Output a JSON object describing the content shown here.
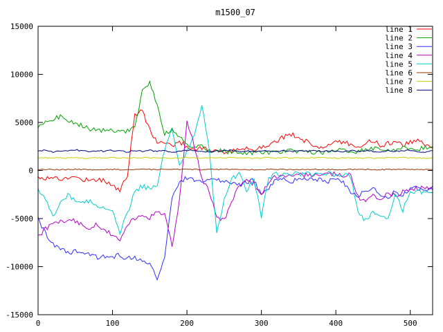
{
  "chart_data": {
    "type": "line",
    "title": "m1500_07",
    "xlabel": "",
    "ylabel": "",
    "xlim": [
      0,
      530
    ],
    "ylim": [
      -15000,
      15000
    ],
    "xticks": [
      0,
      100,
      200,
      300,
      400,
      500
    ],
    "yticks": [
      -15000,
      -10000,
      -5000,
      0,
      5000,
      10000,
      15000
    ],
    "grid": false,
    "legend_position": "top-right",
    "axis_color": "#000000",
    "background_color": "#ffffff",
    "x": [
      0,
      10,
      20,
      30,
      40,
      50,
      60,
      70,
      80,
      90,
      100,
      110,
      120,
      130,
      140,
      150,
      160,
      170,
      180,
      190,
      200,
      210,
      220,
      230,
      240,
      250,
      260,
      270,
      280,
      290,
      300,
      310,
      320,
      330,
      340,
      350,
      360,
      370,
      380,
      390,
      400,
      410,
      420,
      430,
      440,
      450,
      460,
      470,
      480,
      490,
      500,
      510,
      520,
      530
    ],
    "series": [
      {
        "name": "line 1",
        "color": "#ff0000",
        "noise": 250,
        "values": [
          -700,
          -800,
          -700,
          -900,
          -800,
          -700,
          -900,
          -1000,
          -900,
          -1100,
          -1500,
          -2100,
          -500,
          5800,
          6200,
          4200,
          3000,
          2800,
          2600,
          3000,
          2500,
          2200,
          2400,
          2000,
          2200,
          1800,
          2000,
          2100,
          2300,
          2200,
          2500,
          2700,
          3100,
          3500,
          3800,
          3400,
          3000,
          2600,
          2500,
          2700,
          2900,
          3000,
          2700,
          2500,
          2900,
          3100,
          2600,
          2800,
          3000,
          2700,
          2900,
          3100,
          2800,
          2500
        ]
      },
      {
        "name": "line 2",
        "color": "#00a000",
        "noise": 250,
        "values": [
          4600,
          5000,
          5400,
          5600,
          5300,
          5000,
          4600,
          4300,
          4100,
          4300,
          4200,
          4000,
          4100,
          4400,
          8200,
          9200,
          6800,
          3800,
          4300,
          3500,
          2600,
          2300,
          2500,
          2100,
          2200,
          2000,
          1900,
          2000,
          1800,
          1900,
          2000,
          1900,
          1800,
          2000,
          2100,
          1900,
          2000,
          1800,
          1900,
          2000,
          2200,
          2100,
          1900,
          2000,
          2200,
          2300,
          2100,
          2000,
          2200,
          2400,
          2300,
          2200,
          2400,
          2300
        ]
      },
      {
        "name": "line 3",
        "color": "#2e2eff",
        "noise": 250,
        "values": [
          -5000,
          -6500,
          -7600,
          -8200,
          -8500,
          -8400,
          -8600,
          -8800,
          -9000,
          -8900,
          -9000,
          -8800,
          -9200,
          -9000,
          -9400,
          -9700,
          -11300,
          -9000,
          -2800,
          -1200,
          -800,
          -1000,
          -1200,
          -900,
          -1100,
          -1000,
          -1300,
          -1500,
          -1200,
          -1000,
          -2600,
          -1800,
          -1000,
          -900,
          -1100,
          -1000,
          -800,
          -1000,
          -900,
          -1100,
          -1000,
          -1200,
          -2200,
          -2600,
          -2000,
          -1800,
          -2400,
          -2800,
          -2200,
          -2600,
          -2000,
          -1800,
          -2200,
          -1600
        ]
      },
      {
        "name": "line 4",
        "color": "#b400c8",
        "noise": 250,
        "values": [
          -6800,
          -6100,
          -5500,
          -5200,
          -5300,
          -5200,
          -5800,
          -6000,
          -5600,
          -6300,
          -6600,
          -7400,
          -5600,
          -5000,
          -4600,
          -5000,
          -4200,
          -4600,
          -7800,
          -3000,
          5200,
          2500,
          -800,
          -2200,
          -4800,
          -5200,
          -3200,
          -1600,
          -1000,
          -1400,
          -2400,
          -1200,
          -600,
          -400,
          -600,
          -300,
          -500,
          -400,
          -600,
          -300,
          -400,
          -500,
          -400,
          -2800,
          -3200,
          -2600,
          -3000,
          -2400,
          -2600,
          -2200,
          -2000,
          -1900,
          -1800,
          -2000
        ]
      },
      {
        "name": "line 5",
        "color": "#00cdcd",
        "noise": 250,
        "values": [
          -2000,
          -2900,
          -4800,
          -3200,
          -2600,
          -3000,
          -3400,
          -3200,
          -3600,
          -3800,
          -4100,
          -6400,
          -4400,
          -2200,
          -1600,
          -1900,
          -1400,
          2200,
          4300,
          600,
          2100,
          3600,
          6900,
          2000,
          -6600,
          -3100,
          -900,
          -400,
          -2100,
          -900,
          -4900,
          -700,
          -400,
          -500,
          -300,
          -400,
          -300,
          -500,
          -400,
          -300,
          -500,
          -400,
          -600,
          -4600,
          -5100,
          -4300,
          -4900,
          -5100,
          -2600,
          -4100,
          -2300,
          -2100,
          -2500,
          -2300
        ]
      },
      {
        "name": "line 6",
        "color": "#993300",
        "noise": 60,
        "values": [
          100,
          120,
          90,
          110,
          100,
          130,
          100,
          90,
          110,
          100,
          120,
          100,
          90,
          110,
          100,
          120,
          100,
          110,
          90,
          100,
          120,
          110,
          100,
          90,
          110,
          100,
          120,
          100,
          110,
          90,
          100,
          110,
          100,
          120,
          90,
          110,
          100,
          120,
          100,
          110,
          90,
          100,
          110,
          100,
          120,
          100,
          90,
          110,
          100,
          120,
          110,
          100,
          90,
          110
        ]
      },
      {
        "name": "line 7",
        "color": "#cccc00",
        "noise": 60,
        "values": [
          1300,
          1350,
          1280,
          1320,
          1300,
          1360,
          1300,
          1280,
          1330,
          1300,
          1350,
          1300,
          1280,
          1320,
          1300,
          1340,
          1300,
          1320,
          1280,
          1300,
          1340,
          1320,
          1300,
          1280,
          1320,
          1300,
          1350,
          1300,
          1320,
          1280,
          1300,
          1320,
          1300,
          1340,
          1280,
          1320,
          1300,
          1340,
          1300,
          1320,
          1280,
          1300,
          1320,
          1300,
          1340,
          1300,
          1280,
          1320,
          1300,
          1340,
          1320,
          1300,
          1280,
          1320
        ]
      },
      {
        "name": "line 8",
        "color": "#000080",
        "noise": 80,
        "values": [
          2000,
          2100,
          1950,
          2050,
          2000,
          2150,
          2000,
          1950,
          2080,
          2000,
          2100,
          2000,
          1950,
          2060,
          2000,
          2120,
          2000,
          2060,
          1950,
          2000,
          2100,
          2060,
          2000,
          1950,
          2060,
          2000,
          2120,
          2000,
          2060,
          1950,
          2000,
          2060,
          2000,
          2100,
          1950,
          2060,
          2000,
          2100,
          2000,
          2060,
          1950,
          2000,
          2060,
          2000,
          2100,
          2000,
          1950,
          2060,
          2000,
          2100,
          2060,
          2000,
          1950,
          2060
        ]
      }
    ]
  }
}
